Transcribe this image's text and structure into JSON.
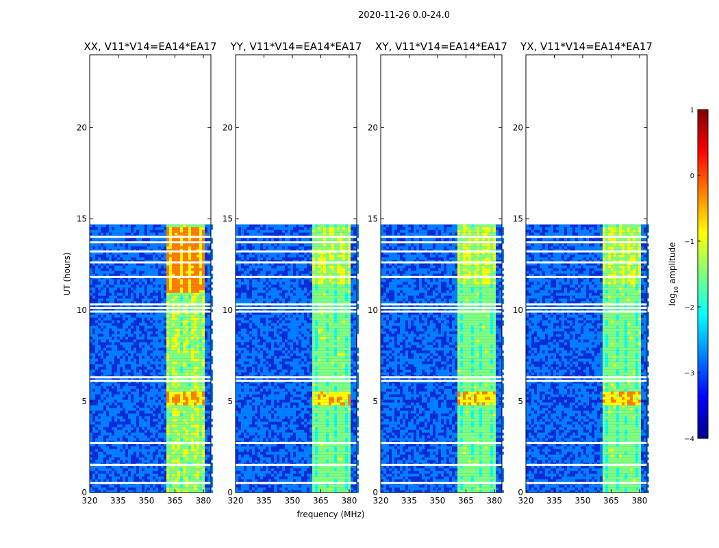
{
  "chart_data": {
    "type": "heatmap",
    "suptitle": "2020-11-26 0.0-24.0",
    "xlabel": "frequency (MHz)",
    "ylabel": "UT (hours)",
    "xticks": [
      "320",
      "335",
      "350",
      "365",
      "380"
    ],
    "xlim": [
      320,
      384
    ],
    "yticks": [
      "0",
      "5",
      "10",
      "15",
      "20"
    ],
    "ylim": [
      0,
      24
    ],
    "data_extent_hours": [
      0,
      14.7
    ],
    "band_mhz": [
      360,
      380
    ],
    "panels": [
      {
        "title": "XX, V11*V14=EA14*EA17",
        "band_level": "high"
      },
      {
        "title": "YY, V11*V14=EA14*EA17",
        "band_level": "medium"
      },
      {
        "title": "XY, V11*V14=EA14*EA17",
        "band_level": "medium"
      },
      {
        "title": "YX, V11*V14=EA14*EA17",
        "band_level": "medium"
      }
    ],
    "gap_rows_hours": [
      0.5,
      1.5,
      2.7,
      6.1,
      6.3,
      9.9,
      10.1,
      10.3,
      11.8,
      12.6,
      13.2,
      13.7,
      14.0
    ],
    "colorbar": {
      "label": "log10 amplitude",
      "label_base": "log",
      "label_sub": "10",
      "label_tail": " amplitude",
      "range": [
        -4,
        1
      ],
      "ticks": [
        "1",
        "0",
        "−1",
        "−2",
        "−3",
        "−4"
      ],
      "colormap": "jet",
      "colors": [
        "#00008f",
        "#0000ff",
        "#007fff",
        "#00ffff",
        "#7fff7f",
        "#ffff00",
        "#ff7f00",
        "#ff0000",
        "#7f0000"
      ]
    }
  }
}
